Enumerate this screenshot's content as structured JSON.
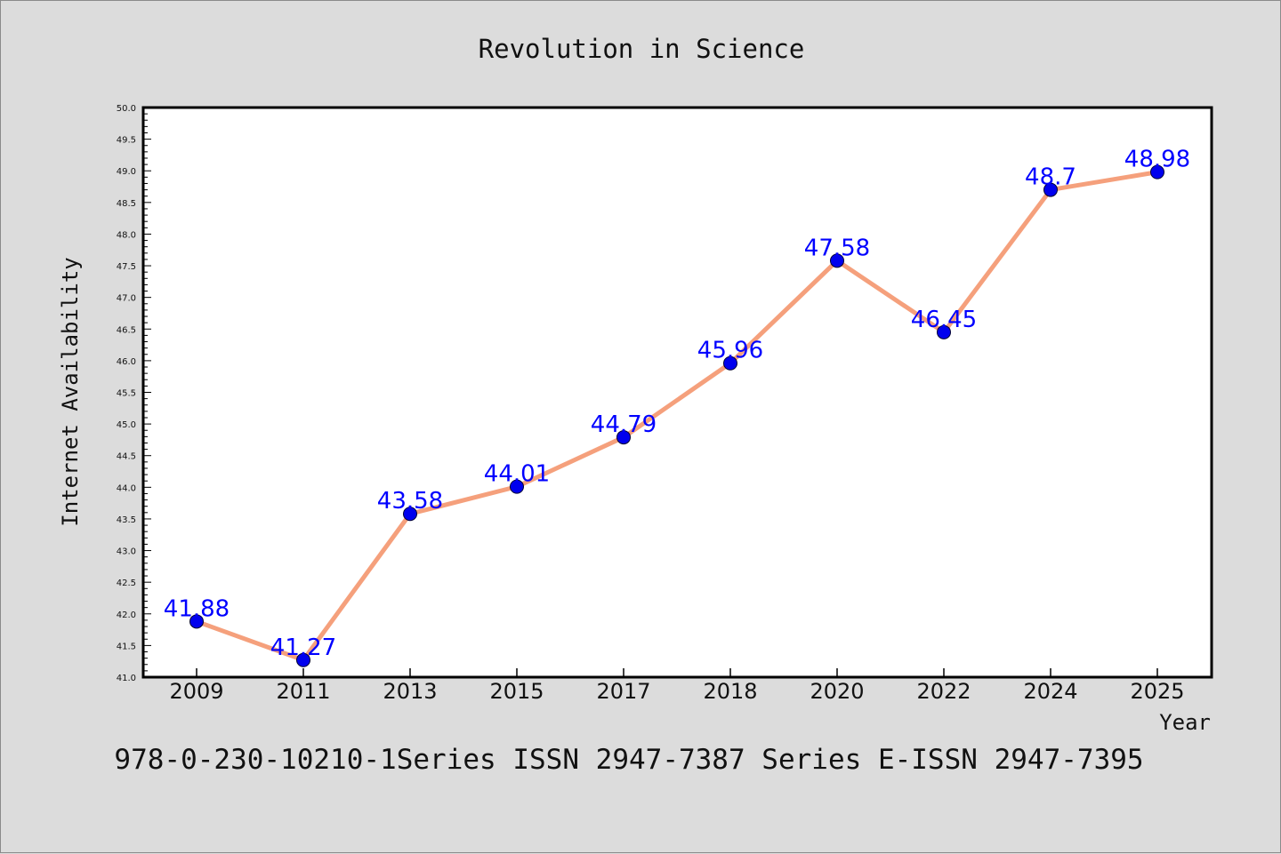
{
  "colors": {
    "background": "#dcdcdc",
    "plot_background": "#ffffff",
    "line": "#f5a07c",
    "marker": "#0000ee",
    "data_label": "#0000ff",
    "text": "#111111"
  },
  "footer": {
    "text": "978-0-230-10210-1Series ISSN 2947-7387 Series E-ISSN 2947-7395"
  },
  "chart_data": {
    "type": "line",
    "title": "Revolution in Science",
    "xlabel": "Year",
    "ylabel": "Internet Availability",
    "categories": [
      "2009",
      "2011",
      "2013",
      "2015",
      "2017",
      "2018",
      "2020",
      "2022",
      "2024",
      "2025"
    ],
    "series": [
      {
        "values": [
          41.88,
          41.27,
          43.58,
          44.01,
          44.79,
          45.96,
          47.58,
          46.45,
          48.7,
          48.98
        ],
        "labels": [
          "41.88",
          "41.27",
          "43.58",
          "44.01",
          "44.79",
          "45.96",
          "47.58",
          "46.45",
          "48.7",
          "48.98"
        ]
      }
    ],
    "ylim": [
      41.0,
      50.0
    ],
    "yticks": [
      "41.0",
      "41.5",
      "42.0",
      "42.5",
      "43.0",
      "43.5",
      "44.0",
      "44.5",
      "45.0",
      "45.5",
      "46.0",
      "46.5",
      "47.0",
      "47.5",
      "48.0",
      "48.5",
      "49.0",
      "49.5",
      "50.0"
    ],
    "grid": false,
    "legend": "none",
    "minor_ticks": true
  }
}
